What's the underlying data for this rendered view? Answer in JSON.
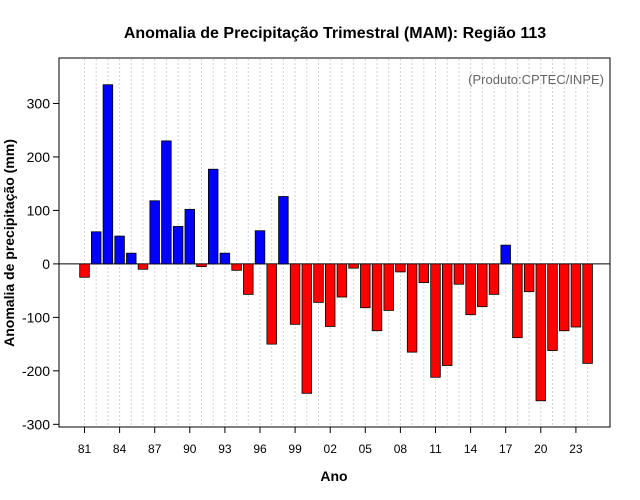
{
  "chart_data": {
    "type": "bar",
    "title": "Anomalia de Precipitação Trimestral (MAM): Região 113",
    "xlabel": "Ano",
    "ylabel": "Anomalia de precipitação (mm)",
    "annotation": "(Produto:CPTEC/INPE)",
    "ylim": [
      -305,
      385
    ],
    "yticks": [
      -300,
      -200,
      -100,
      0,
      100,
      200,
      300
    ],
    "xtick_labels": [
      "81",
      "84",
      "87",
      "90",
      "93",
      "96",
      "99",
      "02",
      "05",
      "08",
      "11",
      "14",
      "17",
      "20",
      "23"
    ],
    "years": [
      1981,
      1982,
      1983,
      1984,
      1985,
      1986,
      1987,
      1988,
      1989,
      1990,
      1991,
      1992,
      1993,
      1994,
      1995,
      1996,
      1997,
      1998,
      1999,
      2000,
      2001,
      2002,
      2003,
      2004,
      2005,
      2006,
      2007,
      2008,
      2009,
      2010,
      2011,
      2012,
      2013,
      2014,
      2015,
      2016,
      2017,
      2018,
      2019,
      2020,
      2021,
      2022,
      2023,
      2024
    ],
    "values": [
      -25,
      60,
      335,
      52,
      20,
      -10,
      118,
      230,
      70,
      102,
      -5,
      177,
      20,
      -12,
      -57,
      62,
      -150,
      126,
      -113,
      -242,
      -72,
      -117,
      -62,
      -8,
      -82,
      -125,
      -87,
      -15,
      -165,
      -35,
      -212,
      -190,
      -38,
      -95,
      -80,
      -57,
      35,
      -138,
      -52,
      -256,
      -162,
      -125,
      -118,
      -186
    ],
    "grid": true,
    "positive_color": "#0000ff",
    "negative_color": "#ff0000"
  }
}
